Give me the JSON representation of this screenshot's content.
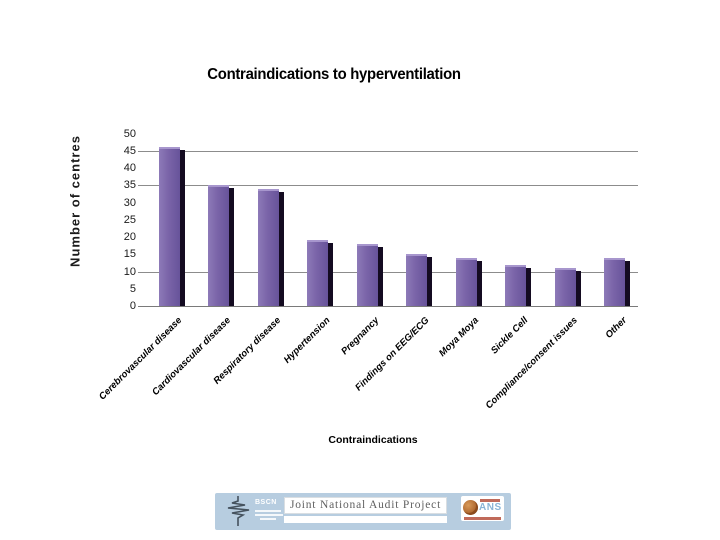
{
  "chart_data": {
    "type": "bar",
    "title": "Contraindications to hyperventilation",
    "categories": [
      "Cerebrovascular disease",
      "Cardiovascular disease",
      "Respiratory disease",
      "Hypertension",
      "Pregnancy",
      "Findings on EEG/ECG",
      "Moya Moya",
      "Sickle Cell",
      "Compliance/consent issues",
      "Other"
    ],
    "values": [
      46,
      35,
      34,
      19,
      18,
      15,
      14,
      12,
      11,
      14
    ],
    "xlabel": "Contraindications",
    "ylabel": "Number of centres",
    "ylim": [
      0,
      50
    ],
    "ytick_step": 5,
    "ytick_labels": [
      "0",
      "5",
      "10",
      "15",
      "20",
      "25",
      "30",
      "35",
      "40",
      "45",
      "50"
    ],
    "gridlines_at": [
      45,
      35,
      10
    ],
    "legend": "none",
    "grid": "partial-horizontal",
    "bar_color": "#7a64a8",
    "bar_shadow_color": "#140b21",
    "gridline_color": "#8c8c8c"
  },
  "footer": {
    "bscn_label": "BSCN",
    "center_label": "Joint National Audit Project",
    "ans_label": "ANS"
  }
}
